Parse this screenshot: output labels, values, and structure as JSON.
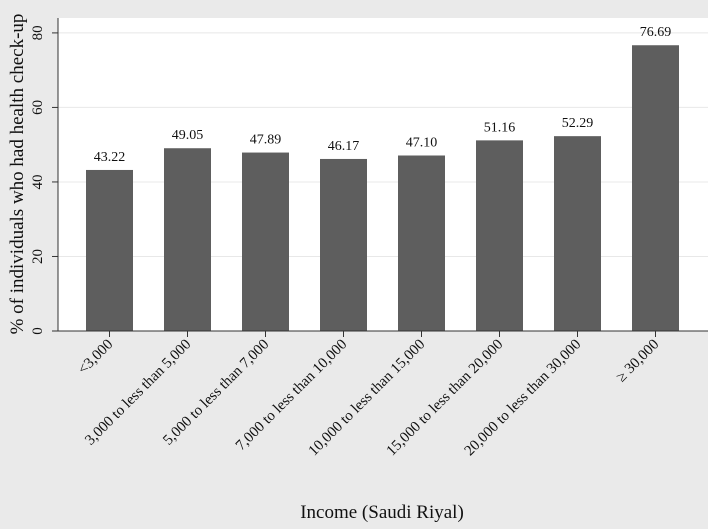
{
  "chart_data": {
    "type": "bar",
    "title": "",
    "xlabel": "Income (Saudi Riyal)",
    "ylabel": "% of individuals who had health check-up",
    "categories": [
      "<3,000",
      "3,000 to less than 5,000",
      "5,000 to less than 7,000",
      "7,000 to less than 10,000",
      "10,000 to less than 15,000",
      "15,000 to less than 20,000",
      "20,000 to less than 30,000",
      "≥ 30,000"
    ],
    "values": [
      43.22,
      49.05,
      47.89,
      46.17,
      47.1,
      51.16,
      52.29,
      76.69
    ],
    "data_labels": [
      "43.22",
      "49.05",
      "47.89",
      "46.17",
      "47.10",
      "51.16",
      "52.29",
      "76.69"
    ],
    "y_ticks": [
      0,
      20,
      40,
      60,
      80
    ],
    "y_tick_labels": [
      "0",
      "20",
      "40",
      "60",
      "80"
    ],
    "ylim": [
      0,
      84
    ],
    "grid": true,
    "legend": "none",
    "colors": {
      "bar": "#5e5e5e",
      "plot_background": "#ffffff",
      "outer_background": "#eaeaea",
      "grid": "#e8e8e8"
    }
  }
}
